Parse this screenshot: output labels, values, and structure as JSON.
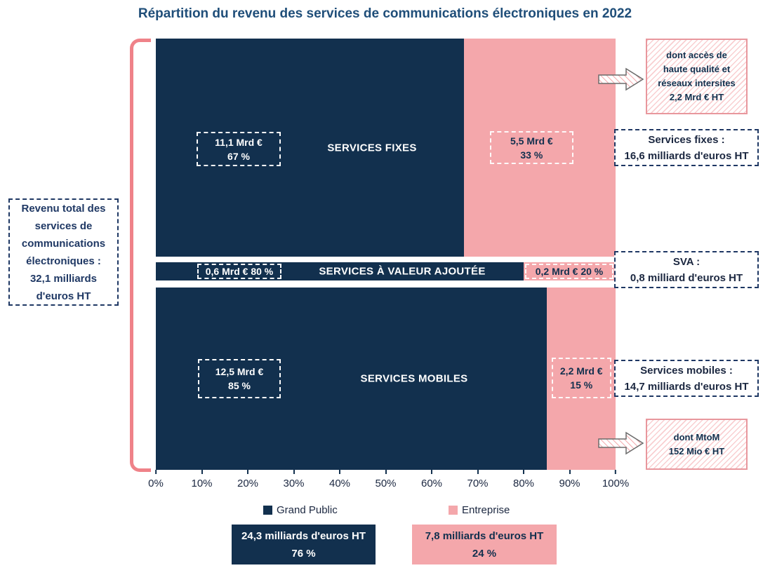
{
  "chart_data": {
    "type": "bar",
    "orientation": "horizontal",
    "stacked_percent": true,
    "title": "Répartition du revenu des services de communications électroniques en 2022",
    "categories": [
      "SERVICES FIXES",
      "SERVICES À VALEUR AJOUTÉE",
      "SERVICES MOBILES"
    ],
    "series": [
      {
        "name": "Grand Public",
        "color": "#12304E",
        "values_pct": [
          67,
          80,
          85
        ],
        "values_mrd_eur": [
          11.1,
          0.6,
          12.5
        ]
      },
      {
        "name": "Entreprise",
        "color": "#F4A7AB",
        "values_pct": [
          33,
          20,
          15
        ],
        "values_mrd_eur": [
          5.5,
          0.2,
          2.2
        ]
      }
    ],
    "category_totals": [
      {
        "label": "Services fixes :",
        "value": "16,6 milliards d'euros HT"
      },
      {
        "label": "SVA :",
        "value": "0,8 milliard d'euros HT"
      },
      {
        "label": "Services mobiles :",
        "value": "14,7 milliards d'euros HT"
      }
    ],
    "series_totals": [
      {
        "name": "Grand Public",
        "value": "24,3 milliards d'euros HT",
        "pct": "76 %"
      },
      {
        "name": "Entreprise",
        "value": "7,8 milliards d'euros HT",
        "pct": "24 %"
      }
    ],
    "grand_total": "32,1 milliards d'euros HT",
    "annotations": [
      "dont accès de haute qualité et réseaux intersites 2,2 Mrd € HT",
      "dont MtoM 152 Mio € HT"
    ],
    "x_axis": {
      "range_pct": [
        0,
        100
      ],
      "tick_labels": [
        "0%",
        "10%",
        "20%",
        "30%",
        "40%",
        "50%",
        "60%",
        "70%",
        "80%",
        "90%",
        "100%"
      ]
    },
    "legend": {
      "position": "bottom",
      "entries": [
        "Grand Public",
        "Entreprise"
      ]
    }
  },
  "value_labels": {
    "fixes_gp": [
      "11,1 Mrd €",
      "67 %"
    ],
    "fixes_ent": [
      "5,5 Mrd €",
      "33 %"
    ],
    "sva_gp": "0,6 Mrd € 80 %",
    "sva_ent": "0,2 Mrd € 20 %",
    "mobiles_gp": [
      "12,5 Mrd €",
      "85 %"
    ],
    "mobiles_ent": [
      "2,2 Mrd €",
      "15 %"
    ]
  },
  "left_note": {
    "lines": [
      "Revenu total des",
      "services de",
      "communications",
      "électroniques :",
      "32,1 milliards",
      "d'euros HT"
    ]
  },
  "callouts": {
    "hq": {
      "lines": [
        "dont accès de",
        "haute qualité et",
        "réseaux intersites",
        "2,2 Mrd € HT"
      ]
    },
    "mtom": {
      "lines": [
        "dont MtoM",
        "152 Mio € HT"
      ]
    }
  },
  "colors": {
    "grand_public": "#12304E",
    "entreprise": "#F4A7AB",
    "title": "#1F4E79",
    "bracket": "#EF8289",
    "dashed_border": "#1F3864",
    "hatch_border": "#E8979D"
  }
}
